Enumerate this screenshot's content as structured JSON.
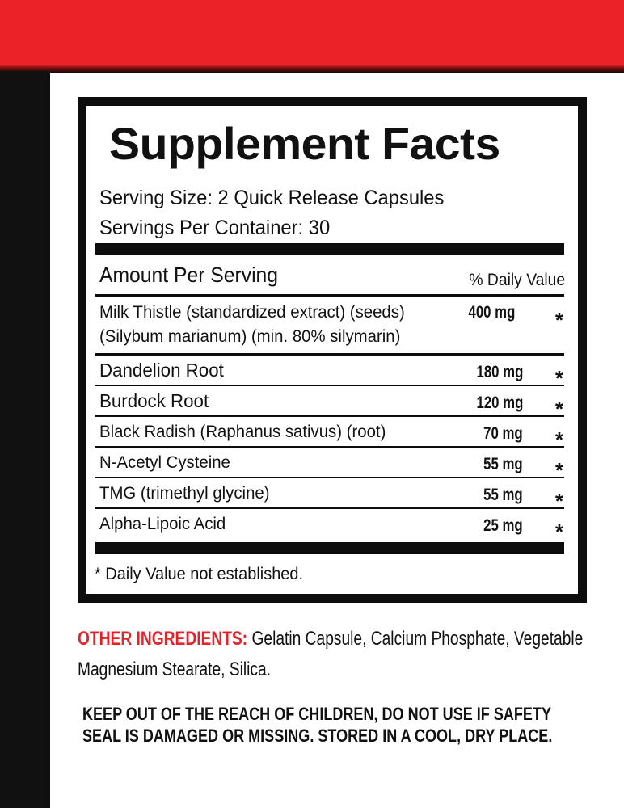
{
  "colors": {
    "top_band": "#ec2229",
    "accent_red": "#e5222a",
    "border": "#0d0d0d"
  },
  "panel": {
    "title": "Supplement Facts",
    "serving_size": "Serving Size: 2 Quick Release Capsules",
    "servings_per_container": "Servings Per Container: 30",
    "amount_header": "Amount Per Serving",
    "dv_header": "% Daily Value",
    "rows": [
      {
        "name": "Milk Thistle (standardized extract) (seeds)",
        "name2": "(Silybum marianum) (min. 80% silymarin)",
        "amount": "400 mg",
        "dv": "*"
      },
      {
        "name": "Dandelion Root",
        "amount": "180 mg",
        "dv": "*"
      },
      {
        "name": "Burdock Root",
        "amount": "120 mg",
        "dv": "*"
      },
      {
        "name": "Black Radish (Raphanus sativus) (root)",
        "amount": "70 mg",
        "dv": "*"
      },
      {
        "name": "N-Acetyl Cysteine",
        "amount": "55 mg",
        "dv": "*"
      },
      {
        "name": "TMG (trimethyl glycine)",
        "amount": "55 mg",
        "dv": "*"
      },
      {
        "name": "Alpha-Lipoic Acid",
        "amount": "25 mg",
        "dv": "*"
      }
    ],
    "footnote": "* Daily Value not established."
  },
  "other_ingredients": {
    "label": "OTHER INGREDIENTS:",
    "line1": " Gelatin Capsule, Calcium Phosphate, Vegetable",
    "line2": "Magnesium Stearate, Silica."
  },
  "warning": {
    "line1": "KEEP OUT OF THE REACH OF CHILDREN, DO NOT USE IF SAFETY",
    "line2": "SEAL IS DAMAGED OR MISSING. STORED IN A COOL, DRY PLACE."
  }
}
